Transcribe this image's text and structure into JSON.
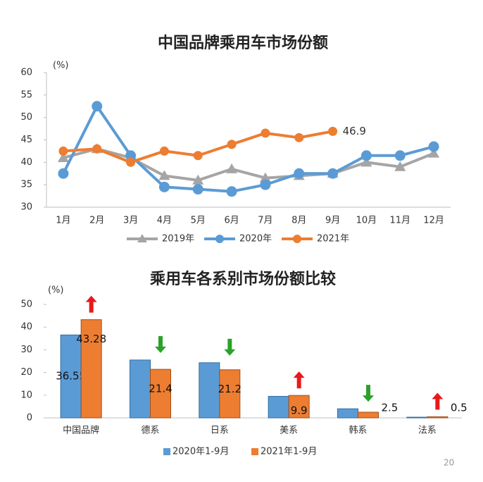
{
  "chart_data": [
    {
      "type": "line",
      "title": "中国品牌乘用车市场份额",
      "y_label": "(%)",
      "categories": [
        "1月",
        "2月",
        "3月",
        "4月",
        "5月",
        "6月",
        "7月",
        "8月",
        "9月",
        "10月",
        "11月",
        "12月"
      ],
      "ylim": [
        30,
        60
      ],
      "yticks": [
        30,
        35,
        40,
        45,
        50,
        55,
        60
      ],
      "grid": false,
      "legend": "bottom",
      "series": [
        {
          "name": "2019年",
          "color": "#a5a5a5",
          "marker": "triangle",
          "values": [
            41,
            43,
            41,
            37,
            36,
            38.5,
            36.5,
            37,
            37.5,
            40,
            39,
            42
          ]
        },
        {
          "name": "2020年",
          "color": "#5b9bd5",
          "marker": "circle",
          "values": [
            37.5,
            52.5,
            41.5,
            34.5,
            34,
            33.5,
            35,
            37.5,
            37.5,
            41.5,
            41.5,
            43.5
          ]
        },
        {
          "name": "2021年",
          "color": "#ed7d31",
          "marker": "circle",
          "values": [
            42.5,
            43,
            40,
            42.5,
            41.5,
            44,
            46.5,
            45.5,
            46.9,
            null,
            null,
            null
          ],
          "value_labels": [
            null,
            null,
            null,
            null,
            null,
            null,
            null,
            null,
            "46.9",
            null,
            null,
            null
          ]
        }
      ]
    },
    {
      "type": "bar",
      "title": "乘用车各系别市场份额比较",
      "y_label": "(%)",
      "categories": [
        "中国品牌",
        "德系",
        "日系",
        "美系",
        "韩系",
        "法系"
      ],
      "ylim": [
        0,
        50
      ],
      "yticks": [
        0,
        10,
        20,
        30,
        40,
        50
      ],
      "grid": false,
      "legend": "bottom",
      "series": [
        {
          "name": "2020年1-9月",
          "color": "#5b9bd5",
          "values": [
            36.55,
            25.5,
            24.3,
            9.5,
            4,
            0.3
          ],
          "value_labels": [
            "36.55",
            null,
            null,
            null,
            null,
            null
          ]
        },
        {
          "name": "2021年1-9月",
          "color": "#ed7d31",
          "values": [
            43.28,
            21.4,
            21.2,
            9.9,
            2.5,
            0.5
          ],
          "value_labels": [
            "43.28",
            "21.4",
            "21.2",
            "9.9",
            "2.5",
            "0.5"
          ]
        }
      ]
    }
  ],
  "watermark": "20"
}
